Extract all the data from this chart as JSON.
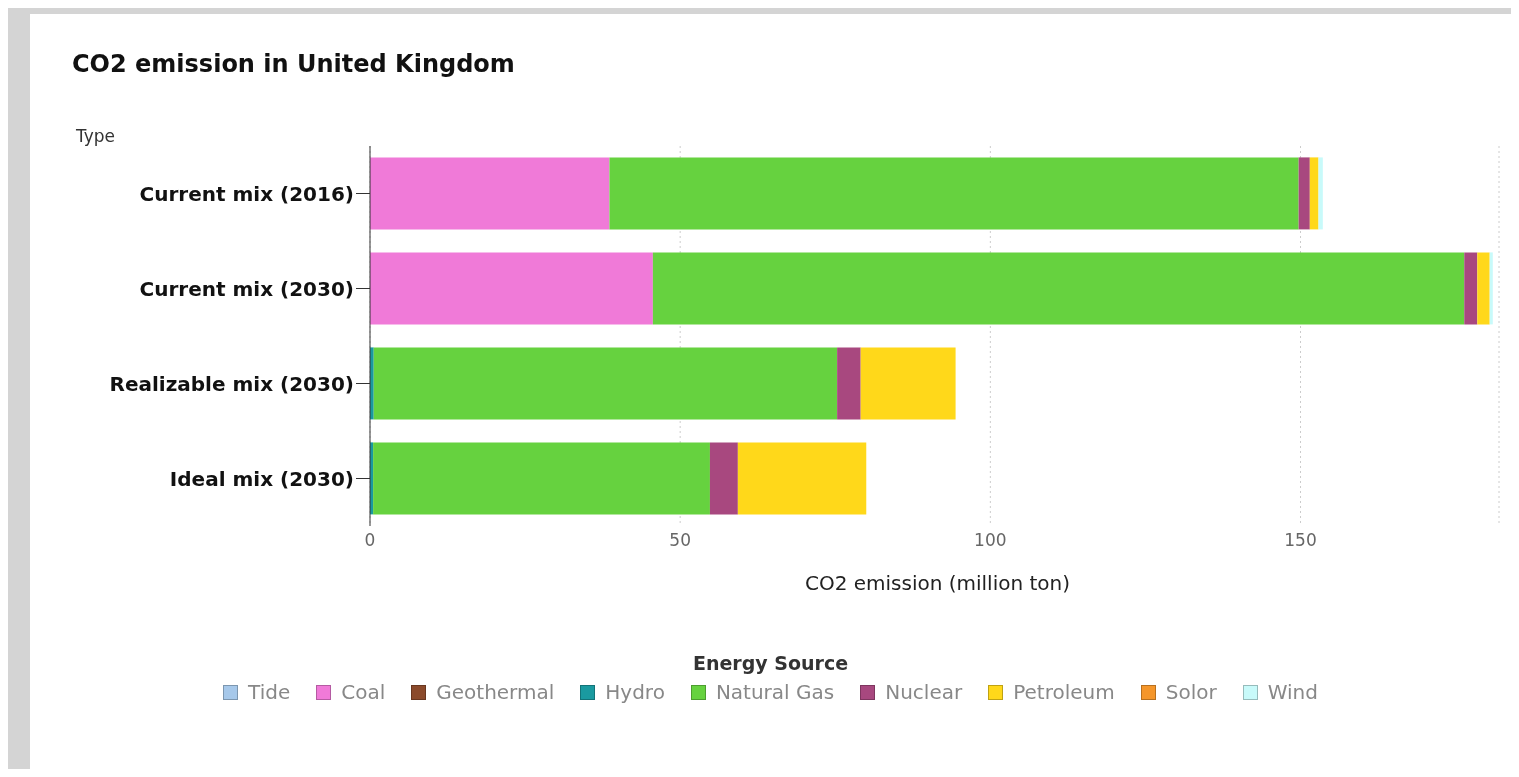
{
  "chart_data": {
    "type": "bar",
    "orientation": "horizontal",
    "stacked": true,
    "title": "CO2 emission in United Kingdom",
    "ylabel": "Type",
    "xlabel": "CO2 emission (million ton)",
    "legend_title": "Energy Source",
    "categories": [
      "Current mix (2016)",
      "Current mix (2030)",
      "Realizable mix (2030)",
      "Ideal mix (2030)"
    ],
    "series": [
      {
        "name": "Tide",
        "color": "#a6c8ea",
        "values": [
          0,
          0,
          0,
          0
        ]
      },
      {
        "name": "Coal",
        "color": "#f07ad8",
        "values": [
          38.6,
          45.6,
          0,
          0
        ]
      },
      {
        "name": "Geothermal",
        "color": "#8b4a2b",
        "values": [
          0,
          0,
          0,
          0
        ]
      },
      {
        "name": "Hydro",
        "color": "#1a9aa0",
        "values": [
          0,
          0,
          0.6,
          0.5
        ]
      },
      {
        "name": "Natural Gas",
        "color": "#66d23f",
        "values": [
          111.1,
          130.8,
          74.7,
          54.3
        ]
      },
      {
        "name": "Nuclear",
        "color": "#a8487f",
        "values": [
          1.8,
          2.1,
          3.8,
          4.5
        ]
      },
      {
        "name": "Petroleum",
        "color": "#ffd81a",
        "values": [
          1.4,
          2.0,
          15.3,
          20.7
        ]
      },
      {
        "name": "Solor",
        "color": "#f5962a",
        "values": [
          0,
          0,
          0,
          0
        ]
      },
      {
        "name": "Wind",
        "color": "#c8fafa",
        "values": [
          0.7,
          0.5,
          0,
          0
        ]
      }
    ],
    "xlim": [
      0,
      182
    ],
    "xticks": [
      0,
      50,
      100,
      150
    ],
    "grid": "x",
    "legend": "bottom"
  }
}
